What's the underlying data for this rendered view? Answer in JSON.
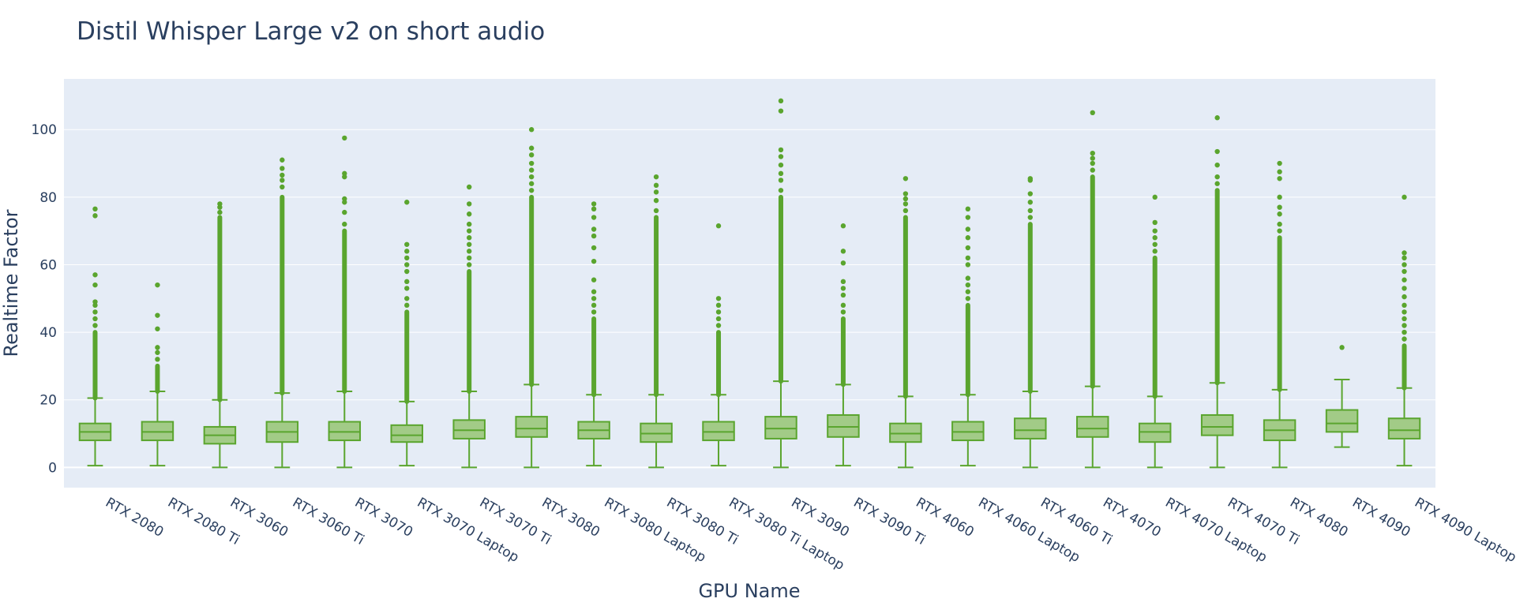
{
  "colors": {
    "plot_bg": "#e5ecf6",
    "grid": "#ffffff",
    "text": "#2a3f5f",
    "box_line": "#5aa52e",
    "box_fill": "#a2cb87",
    "outlier": "#5aa52e"
  },
  "chart_data": {
    "type": "box",
    "title": "Distil Whisper Large v2 on short audio",
    "xlabel": "GPU Name",
    "ylabel": "Realtime Factor",
    "ylim": [
      -6,
      115
    ],
    "yticks": [
      0,
      20,
      40,
      60,
      80,
      100
    ],
    "grid": true,
    "legend": "none",
    "categories": [
      "RTX 2080",
      "RTX 2080 Ti",
      "RTX 3060",
      "RTX 3060 Ti",
      "RTX 3070",
      "RTX 3070 Laptop",
      "RTX 3070 Ti",
      "RTX 3080",
      "RTX 3080 Laptop",
      "RTX 3080 Ti",
      "RTX 3080 Ti Laptop",
      "RTX 3090",
      "RTX 3090 Ti",
      "RTX 4060",
      "RTX 4060 Laptop",
      "RTX 4060 Ti",
      "RTX 4070",
      "RTX 4070 Laptop",
      "RTX 4070 Ti",
      "RTX 4080",
      "RTX 4090",
      "RTX 4090 Laptop"
    ],
    "boxes": [
      {
        "min": 0.5,
        "q1": 8.0,
        "median": 10.5,
        "q3": 13.0,
        "max": 20.5,
        "dense_to": 40,
        "outliers": [
          42,
          44,
          46,
          48,
          49,
          54,
          57,
          74.5,
          76.5
        ]
      },
      {
        "min": 0.5,
        "q1": 8.0,
        "median": 10.5,
        "q3": 13.5,
        "max": 22.5,
        "dense_to": 30,
        "outliers": [
          32,
          34,
          35.5,
          41,
          45,
          54
        ]
      },
      {
        "min": 0.0,
        "q1": 7.0,
        "median": 9.5,
        "q3": 12.0,
        "max": 20.0,
        "dense_to": 74,
        "outliers": [
          75.5,
          77,
          78
        ]
      },
      {
        "min": 0.0,
        "q1": 7.5,
        "median": 10.5,
        "q3": 13.5,
        "max": 22.0,
        "dense_to": 80,
        "outliers": [
          83,
          85,
          86.5,
          88.5,
          91
        ]
      },
      {
        "min": 0.0,
        "q1": 8.0,
        "median": 10.5,
        "q3": 13.5,
        "max": 22.5,
        "dense_to": 70,
        "outliers": [
          72,
          75.5,
          78.5,
          79.5,
          86,
          87,
          97.5
        ]
      },
      {
        "min": 0.5,
        "q1": 7.5,
        "median": 9.5,
        "q3": 12.5,
        "max": 19.5,
        "dense_to": 46,
        "outliers": [
          48,
          50,
          53,
          55,
          58,
          60,
          62,
          64,
          66,
          78.5
        ]
      },
      {
        "min": 0.0,
        "q1": 8.5,
        "median": 11.0,
        "q3": 14.0,
        "max": 22.5,
        "dense_to": 58,
        "outliers": [
          60,
          62,
          64,
          66,
          68,
          70,
          72,
          75,
          78,
          83
        ]
      },
      {
        "min": 0.0,
        "q1": 9.0,
        "median": 11.5,
        "q3": 15.0,
        "max": 24.5,
        "dense_to": 80,
        "outliers": [
          82,
          84,
          86,
          88,
          90,
          92.5,
          94.5,
          100
        ]
      },
      {
        "min": 0.5,
        "q1": 8.5,
        "median": 11.0,
        "q3": 13.5,
        "max": 21.5,
        "dense_to": 44,
        "outliers": [
          46,
          48,
          50,
          52,
          55.5,
          61,
          65,
          68.5,
          70.5,
          74,
          76.5,
          78
        ]
      },
      {
        "min": 0.0,
        "q1": 7.5,
        "median": 10.0,
        "q3": 13.0,
        "max": 21.5,
        "dense_to": 74,
        "outliers": [
          76,
          79,
          81.5,
          83.5,
          86
        ]
      },
      {
        "min": 0.5,
        "q1": 8.0,
        "median": 10.5,
        "q3": 13.5,
        "max": 21.5,
        "dense_to": 40,
        "outliers": [
          42,
          44,
          46,
          48,
          50,
          71.5
        ]
      },
      {
        "min": 0.0,
        "q1": 8.5,
        "median": 11.5,
        "q3": 15.0,
        "max": 25.5,
        "dense_to": 80,
        "outliers": [
          82,
          85,
          87,
          89.5,
          92,
          94,
          105.5,
          108.5
        ]
      },
      {
        "min": 0.5,
        "q1": 9.0,
        "median": 12.0,
        "q3": 15.5,
        "max": 24.5,
        "dense_to": 44,
        "outliers": [
          46,
          48,
          51,
          53,
          55,
          60.5,
          64,
          71.5
        ]
      },
      {
        "min": 0.0,
        "q1": 7.5,
        "median": 10.0,
        "q3": 13.0,
        "max": 21.0,
        "dense_to": 74,
        "outliers": [
          76,
          78,
          79.5,
          81,
          85.5
        ]
      },
      {
        "min": 0.5,
        "q1": 8.0,
        "median": 10.5,
        "q3": 13.5,
        "max": 21.5,
        "dense_to": 48,
        "outliers": [
          50,
          52,
          54,
          56,
          60,
          62,
          65,
          68,
          70.5,
          74,
          76.5
        ]
      },
      {
        "min": 0.0,
        "q1": 8.5,
        "median": 11.0,
        "q3": 14.5,
        "max": 22.5,
        "dense_to": 72,
        "outliers": [
          74,
          76,
          78.5,
          81,
          85,
          85.5
        ]
      },
      {
        "min": 0.0,
        "q1": 9.0,
        "median": 11.5,
        "q3": 15.0,
        "max": 24.0,
        "dense_to": 86,
        "outliers": [
          88,
          90,
          91.5,
          93,
          105
        ]
      },
      {
        "min": 0.0,
        "q1": 7.5,
        "median": 10.5,
        "q3": 13.0,
        "max": 21.0,
        "dense_to": 62,
        "outliers": [
          64,
          66,
          68,
          70,
          72.5,
          80
        ]
      },
      {
        "min": 0.0,
        "q1": 9.5,
        "median": 12.0,
        "q3": 15.5,
        "max": 25.0,
        "dense_to": 82,
        "outliers": [
          84,
          86,
          89.5,
          93.5,
          103.5
        ]
      },
      {
        "min": 0.0,
        "q1": 8.0,
        "median": 11.0,
        "q3": 14.0,
        "max": 23.0,
        "dense_to": 68,
        "outliers": [
          70,
          72,
          75,
          77,
          80,
          85.5,
          87.5,
          90
        ]
      },
      {
        "min": 6.0,
        "q1": 10.5,
        "median": 13.0,
        "q3": 17.0,
        "max": 26.0,
        "dense_to": 26,
        "outliers": [
          35.5
        ]
      },
      {
        "min": 0.5,
        "q1": 8.5,
        "median": 11.0,
        "q3": 14.5,
        "max": 23.5,
        "dense_to": 36,
        "outliers": [
          38,
          40,
          42,
          44,
          46,
          48,
          50.5,
          53,
          55.5,
          58,
          60,
          62,
          63.5,
          80
        ]
      }
    ]
  }
}
